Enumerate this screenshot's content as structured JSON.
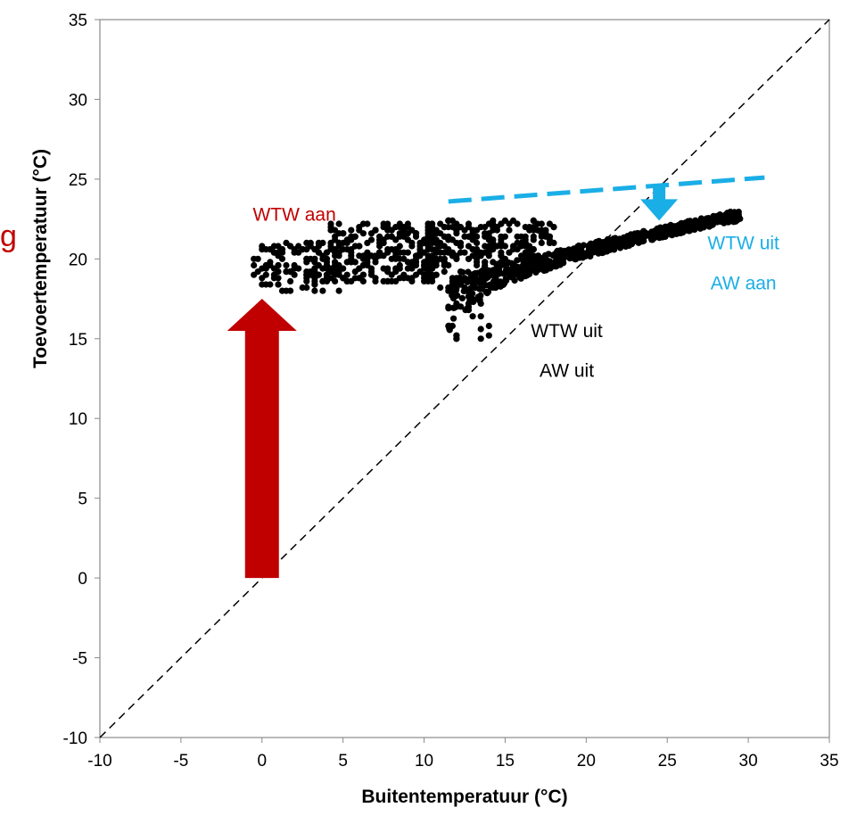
{
  "edge_glyph": "g",
  "chart_data": {
    "type": "scatter",
    "title": "",
    "xlabel": "Buitentemperatuur (°C)",
    "ylabel": "Toevoertemperatuur (°C)",
    "xlim": [
      -10,
      35
    ],
    "ylim": [
      -10,
      35
    ],
    "xticks": [
      -10,
      -5,
      0,
      5,
      10,
      15,
      20,
      25,
      30,
      35
    ],
    "yticks": [
      -10,
      -5,
      0,
      5,
      10,
      15,
      20,
      25,
      30,
      35
    ],
    "grid": false,
    "legend": "none",
    "reference_line": {
      "style": "dashed",
      "color": "#000000",
      "points": [
        [
          -10,
          -10
        ],
        [
          35,
          35
        ]
      ]
    },
    "clusters": [
      {
        "x_range": [
          -0.5,
          5
        ],
        "y_range": [
          18.0,
          21.0
        ],
        "points": 130
      },
      {
        "x_range": [
          4,
          11
        ],
        "y_range": [
          18.5,
          22.3
        ],
        "points": 250
      },
      {
        "x_range": [
          10,
          17
        ],
        "y_range": [
          19.5,
          22.5
        ],
        "points": 200
      },
      {
        "x_range": [
          17,
          18
        ],
        "y_range": [
          21.0,
          22.3
        ],
        "points": 20
      },
      {
        "x_range": [
          11,
          12.5
        ],
        "y_range": [
          18.0,
          21.0
        ],
        "points": 18
      },
      {
        "x_range": [
          11.5,
          14.5
        ],
        "y_range": [
          15.0,
          19.0
        ],
        "points": 30
      }
    ],
    "band": {
      "points": 620,
      "x_from": 11.5,
      "x_to": 29.5,
      "y_lower": [
        15.0,
        22.4
      ],
      "y_upper": [
        19.0,
        23.1
      ]
    },
    "series_color": "#000000",
    "annotations": [
      {
        "text": "WTW aan",
        "x": 2.0,
        "y": 22.4,
        "color": "#c00000"
      },
      {
        "text": "WTW uit",
        "x": 29.7,
        "y": 20.6,
        "color": "#1aaee6"
      },
      {
        "text": "AW aan",
        "x": 29.7,
        "y": 18.1,
        "color": "#1aaee6"
      },
      {
        "text": "WTW uit",
        "x": 18.8,
        "y": 15.1,
        "color": "#000000"
      },
      {
        "text": "AW uit",
        "x": 18.8,
        "y": 12.6,
        "color": "#000000"
      }
    ],
    "arrows": [
      {
        "color": "#c00000",
        "x": 0,
        "y_from": 0,
        "y_to": 17.5
      },
      {
        "color": "#1aaee6",
        "x": 24.5,
        "y_from": 24.5,
        "y_to": 22.4
      }
    ],
    "trend_line": {
      "color": "#1aaee6",
      "style": "dashed",
      "points": [
        [
          11.5,
          23.6
        ],
        [
          31,
          25.1
        ]
      ]
    }
  }
}
